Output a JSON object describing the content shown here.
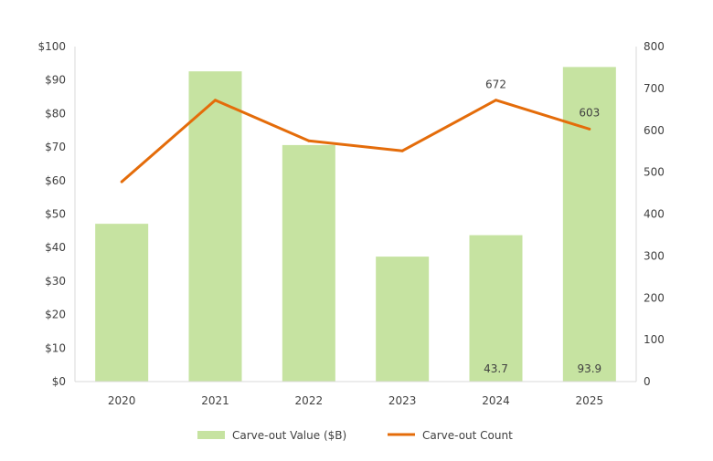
{
  "chart_data": {
    "type": "bar+line",
    "categories": [
      "2020",
      "2021",
      "2022",
      "2023",
      "2024",
      "2025"
    ],
    "series": [
      {
        "name": "Carve-out Value ($B)",
        "type": "bar",
        "axis": "left",
        "color": "#c6e3a1",
        "values": [
          47.1,
          92.6,
          70.6,
          37.3,
          43.7,
          93.9
        ],
        "data_labels": [
          null,
          null,
          null,
          null,
          "43.7",
          "93.9"
        ]
      },
      {
        "name": "Carve-out Count",
        "type": "line",
        "axis": "right",
        "color": "#e46c0a",
        "values": [
          477,
          672,
          575,
          551,
          672,
          603
        ],
        "data_labels": [
          null,
          null,
          null,
          null,
          "672",
          "603"
        ]
      }
    ],
    "y_left": {
      "ylim": [
        0,
        100
      ],
      "ticks": [
        "$0",
        "$10",
        "$20",
        "$30",
        "$40",
        "$50",
        "$60",
        "$70",
        "$80",
        "$90",
        "$100"
      ]
    },
    "y_right": {
      "ylim": [
        0,
        800
      ],
      "ticks": [
        "0",
        "100",
        "200",
        "300",
        "400",
        "500",
        "600",
        "700",
        "800"
      ]
    },
    "grid": false,
    "legend": "bottom"
  }
}
